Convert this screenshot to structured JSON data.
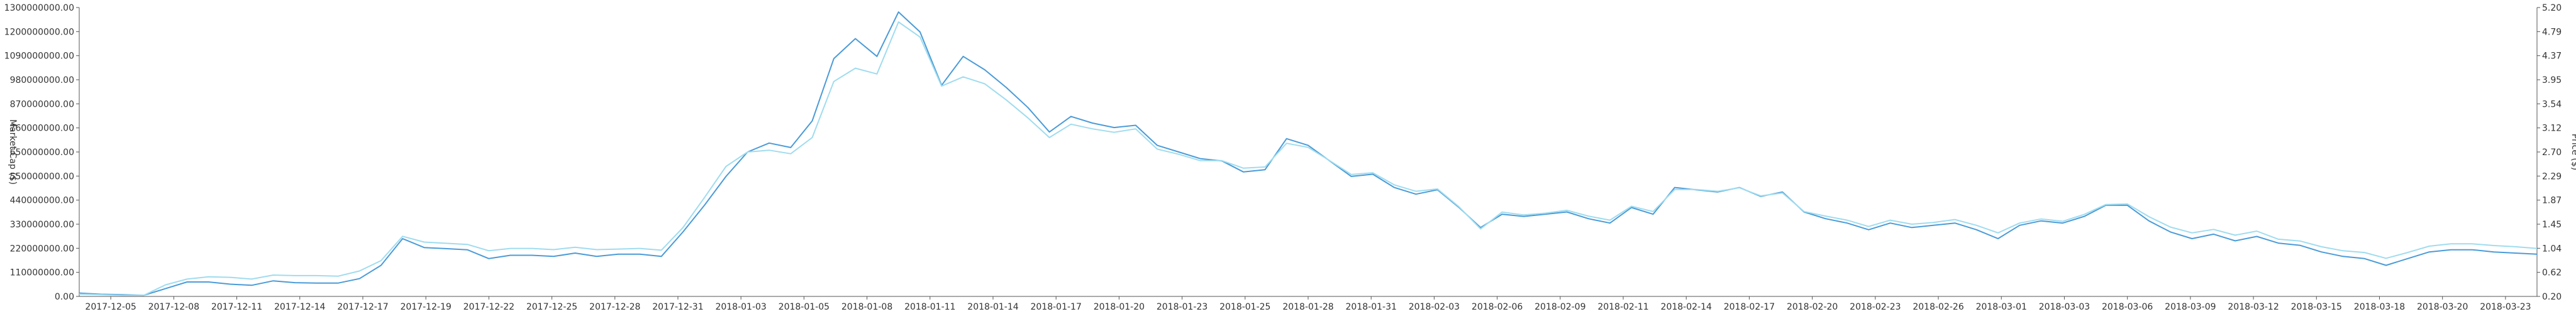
{
  "chart_data": {
    "type": "line",
    "title": "",
    "xlabel": "",
    "ylabel": "Market Cap ($)",
    "ylabel_right": "Price ($)",
    "ylim": [
      0,
      1300000000
    ],
    "ylim_right": [
      0.2,
      5.2
    ],
    "grid": false,
    "colors": {
      "market_cap": "#4a9bd8",
      "price": "#9fdcef",
      "axis": "#555555"
    },
    "y_ticks_left": [
      "0.00",
      "110000000.00",
      "220000000.00",
      "330000000.00",
      "440000000.00",
      "550000000.00",
      "650000000.00",
      "760000000.00",
      "870000000.00",
      "980000000.00",
      "1090000000.00",
      "1200000000.00",
      "1300000000.00"
    ],
    "y_ticks_right": [
      "0.20",
      "0.62",
      "1.04",
      "1.45",
      "1.87",
      "2.29",
      "2.70",
      "3.12",
      "3.54",
      "3.95",
      "4.37",
      "4.79",
      "5.20"
    ],
    "x_ticks": [
      "2017-12-05",
      "2017-12-08",
      "2017-12-11",
      "2017-12-14",
      "2017-12-17",
      "2017-12-19",
      "2017-12-22",
      "2017-12-25",
      "2017-12-28",
      "2017-12-31",
      "2018-01-03",
      "2018-01-05",
      "2018-01-08",
      "2018-01-11",
      "2018-01-14",
      "2018-01-17",
      "2018-01-20",
      "2018-01-23",
      "2018-01-25",
      "2018-01-28",
      "2018-01-31",
      "2018-02-03",
      "2018-02-06",
      "2018-02-09",
      "2018-02-11",
      "2018-02-14",
      "2018-02-17",
      "2018-02-20",
      "2018-02-23",
      "2018-02-26",
      "2018-03-01",
      "2018-03-03",
      "2018-03-06",
      "2018-03-09",
      "2018-03-12",
      "2018-03-15",
      "2018-03-18",
      "2018-03-20",
      "2018-03-23"
    ],
    "series": [
      {
        "name": "Market Cap ($)",
        "axis": "left",
        "values": [
          15000000,
          10000000,
          8000000,
          5000000,
          35000000,
          65000000,
          65000000,
          55000000,
          50000000,
          70000000,
          62000000,
          60000000,
          60000000,
          80000000,
          140000000,
          260000000,
          220000000,
          215000000,
          210000000,
          170000000,
          185000000,
          185000000,
          180000000,
          195000000,
          180000000,
          190000000,
          190000000,
          180000000,
          290000000,
          410000000,
          540000000,
          650000000,
          690000000,
          670000000,
          790000000,
          1070000000,
          1160000000,
          1080000000,
          1280000000,
          1190000000,
          950000000,
          1080000000,
          1020000000,
          940000000,
          850000000,
          740000000,
          810000000,
          780000000,
          760000000,
          770000000,
          680000000,
          650000000,
          620000000,
          610000000,
          560000000,
          570000000,
          710000000,
          680000000,
          610000000,
          540000000,
          550000000,
          490000000,
          460000000,
          480000000,
          400000000,
          310000000,
          370000000,
          360000000,
          370000000,
          380000000,
          350000000,
          330000000,
          400000000,
          370000000,
          490000000,
          480000000,
          470000000,
          490000000,
          450000000,
          470000000,
          380000000,
          350000000,
          330000000,
          300000000,
          330000000,
          310000000,
          320000000,
          330000000,
          300000000,
          260000000,
          320000000,
          340000000,
          330000000,
          360000000,
          410000000,
          410000000,
          340000000,
          290000000,
          260000000,
          280000000,
          250000000,
          270000000,
          240000000,
          230000000,
          200000000,
          180000000,
          170000000,
          140000000,
          170000000,
          200000000,
          210000000,
          210000000,
          200000000,
          195000000,
          190000000
        ]
      },
      {
        "name": "Price ($)",
        "axis": "right",
        "values": [
          0.24,
          0.23,
          0.22,
          0.22,
          0.4,
          0.5,
          0.54,
          0.53,
          0.5,
          0.57,
          0.56,
          0.56,
          0.55,
          0.64,
          0.82,
          1.24,
          1.14,
          1.12,
          1.1,
          0.99,
          1.03,
          1.03,
          1.01,
          1.05,
          1.01,
          1.02,
          1.03,
          1.0,
          1.39,
          1.91,
          2.45,
          2.7,
          2.73,
          2.67,
          2.95,
          3.92,
          4.15,
          4.05,
          4.95,
          4.69,
          3.84,
          4.0,
          3.88,
          3.6,
          3.29,
          2.95,
          3.18,
          3.1,
          3.04,
          3.1,
          2.75,
          2.66,
          2.55,
          2.55,
          2.42,
          2.44,
          2.85,
          2.78,
          2.55,
          2.31,
          2.34,
          2.13,
          2.02,
          2.06,
          1.75,
          1.37,
          1.66,
          1.61,
          1.64,
          1.69,
          1.59,
          1.52,
          1.76,
          1.67,
          2.05,
          2.05,
          2.02,
          2.08,
          1.94,
          1.99,
          1.67,
          1.59,
          1.52,
          1.41,
          1.52,
          1.45,
          1.48,
          1.53,
          1.43,
          1.3,
          1.47,
          1.54,
          1.5,
          1.62,
          1.79,
          1.8,
          1.58,
          1.4,
          1.3,
          1.36,
          1.26,
          1.33,
          1.19,
          1.16,
          1.06,
          0.99,
          0.96,
          0.86,
          0.96,
          1.07,
          1.11,
          1.11,
          1.08,
          1.06,
          1.03
        ]
      }
    ]
  }
}
